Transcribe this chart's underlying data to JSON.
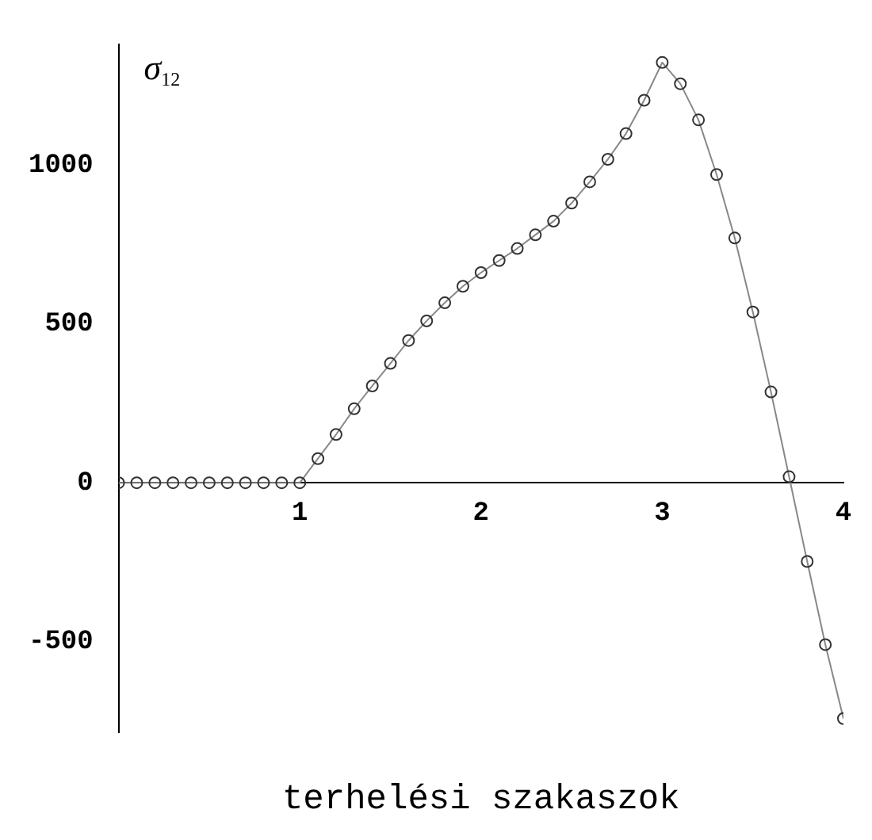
{
  "chart_data": {
    "type": "line",
    "xlabel": "terhelési szakaszok",
    "ylabel": "σ$_{12}$",
    "x": [
      0,
      0.1,
      0.2,
      0.3,
      0.4,
      0.5,
      0.6,
      0.7,
      0.8,
      0.9,
      1.0,
      1.1,
      1.2,
      1.3,
      1.4,
      1.5,
      1.6,
      1.7,
      1.8,
      1.9,
      2.0,
      2.1,
      2.2,
      2.3,
      2.4,
      2.5,
      2.6,
      2.7,
      2.8,
      2.9,
      3.0,
      3.1,
      3.2,
      3.3,
      3.4,
      3.5,
      3.6,
      3.7,
      3.8,
      3.9,
      4.0
    ],
    "series": [
      {
        "color": "#333333",
        "values": [
          0,
          0,
          0,
          0,
          0,
          0,
          0,
          0,
          0,
          0,
          0,
          76,
          152,
          233,
          305,
          376,
          448,
          510,
          567,
          619,
          662,
          700,
          738,
          781,
          824,
          881,
          948,
          1019,
          1100,
          1205,
          1324,
          1257,
          1143,
          971,
          771,
          538,
          286,
          19,
          -248,
          -510,
          -743
        ]
      }
    ],
    "xlim": [
      0,
      4
    ],
    "xticks": [
      1,
      2,
      3,
      4
    ],
    "ylim": [
      -786,
      1380
    ],
    "yticks": [
      -500,
      0,
      500,
      1000
    ],
    "grid": false,
    "legend": false,
    "marker": "circle",
    "line_style": "solid"
  }
}
